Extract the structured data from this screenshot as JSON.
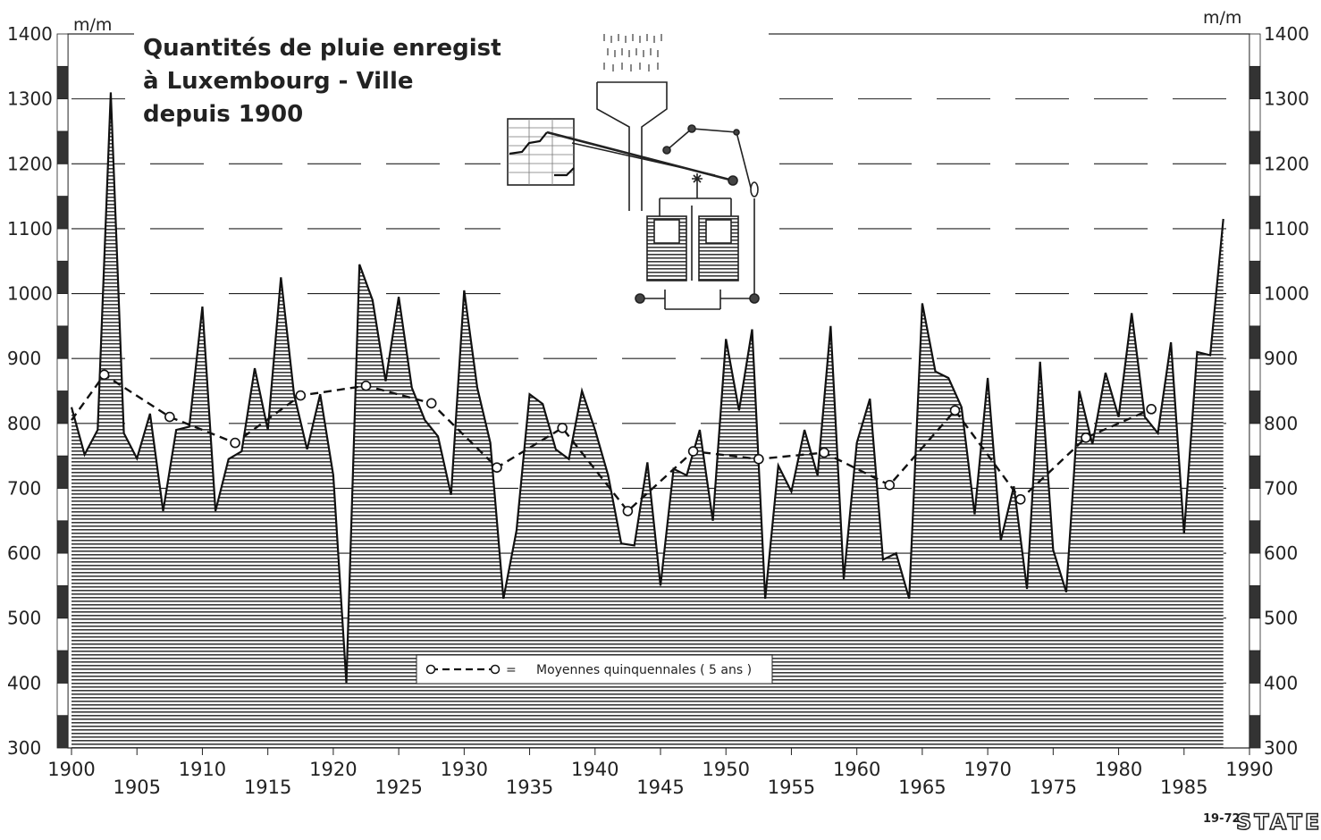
{
  "chart_data": {
    "type": "area",
    "title_lines": [
      "Quantités de pluie enregistrées",
      "à Luxembourg - Ville",
      "depuis 1900"
    ],
    "unit_left": "m/m",
    "unit_right": "m/m",
    "ylim": [
      300,
      1400
    ],
    "y_ticks": [
      300,
      400,
      500,
      600,
      700,
      800,
      900,
      1000,
      1100,
      1200,
      1300,
      1400
    ],
    "xlim": [
      1900,
      1990
    ],
    "x_ticks": [
      1900,
      1905,
      1910,
      1915,
      1920,
      1925,
      1930,
      1935,
      1940,
      1945,
      1950,
      1955,
      1960,
      1965,
      1970,
      1975,
      1980,
      1985,
      1990
    ],
    "series": [
      {
        "name": "",
        "x": [
          1900,
          1901,
          1902,
          1903,
          1904,
          1905,
          1906,
          1907,
          1908,
          1909,
          1910,
          1911,
          1912,
          1913,
          1914,
          1915,
          1916,
          1917,
          1918,
          1919,
          1920,
          1921,
          1922,
          1923,
          1924,
          1925,
          1926,
          1927,
          1928,
          1929,
          1930,
          1931,
          1932,
          1933,
          1934,
          1935,
          1936,
          1937,
          1938,
          1939,
          1940,
          1941,
          1942,
          1943,
          1944,
          1945,
          1946,
          1947,
          1948,
          1949,
          1950,
          1951,
          1952,
          1953,
          1954,
          1955,
          1956,
          1957,
          1958,
          1959,
          1960,
          1961,
          1962,
          1963,
          1964,
          1965,
          1966,
          1967,
          1968,
          1969,
          1970,
          1971,
          1972,
          1973,
          1974,
          1975,
          1976,
          1977,
          1978,
          1979,
          1980,
          1981,
          1982,
          1983,
          1984,
          1985,
          1986,
          1987,
          1988
        ],
        "values": [
          825,
          752,
          790,
          1310,
          785,
          746,
          815,
          665,
          790,
          795,
          980,
          665,
          745,
          757,
          885,
          790,
          1025,
          845,
          760,
          845,
          720,
          400,
          1045,
          990,
          865,
          995,
          855,
          805,
          780,
          690,
          1005,
          855,
          770,
          530,
          635,
          845,
          830,
          760,
          745,
          850,
          790,
          720,
          615,
          612,
          740,
          550,
          730,
          720,
          790,
          650,
          930,
          820,
          945,
          530,
          735,
          695,
          790,
          720,
          950,
          560,
          770,
          838,
          590,
          600,
          530,
          985,
          880,
          870,
          825,
          660,
          870,
          620,
          703,
          545,
          895,
          605,
          540,
          850,
          768,
          878,
          810,
          970,
          810,
          785,
          925,
          630,
          910,
          905,
          1115
        ]
      },
      {
        "name": "Moyennes quinquennales ( 5 ans )",
        "style": "dashed",
        "x": [
          1900,
          1902.5,
          1907.5,
          1912.5,
          1917.5,
          1922.5,
          1927.5,
          1932.5,
          1937.5,
          1942.5,
          1947.5,
          1952.5,
          1957.5,
          1962.5,
          1967.5,
          1972.5,
          1977.5,
          1982.5
        ],
        "values": [
          805,
          875,
          810,
          770,
          843,
          858,
          831,
          732,
          793,
          665,
          757,
          745,
          755,
          705,
          820,
          683,
          778,
          822
        ]
      }
    ],
    "legend": {
      "placement": "bottom-center",
      "symbol": "o------o =",
      "label": "Moyennes quinquennales ( 5 ans )"
    },
    "footer_code": "19-72",
    "logo_text": "STATEC",
    "grid": "dashed horizontal",
    "fill": "hatched",
    "colors": {
      "ink": "#222222",
      "fill": "#444444",
      "background": "#ffffff"
    }
  }
}
